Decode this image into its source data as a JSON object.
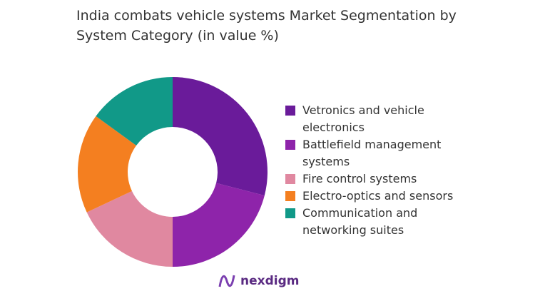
{
  "chart_data": {
    "type": "donut",
    "title": "India combats vehicle systems Market Segmentation by System Category (in value %)",
    "categories": [
      "Vetronics and vehicle electronics",
      "Battlefield management systems",
      "Fire control systems",
      "Electro-optics and sensors",
      "Communication and networking suites"
    ],
    "values": [
      29,
      21,
      18,
      17,
      15
    ],
    "colors": [
      "#6a1b9a",
      "#8e24aa",
      "#e088a0",
      "#f47f20",
      "#119988"
    ],
    "legend": "right"
  },
  "brand": "nexdigm"
}
